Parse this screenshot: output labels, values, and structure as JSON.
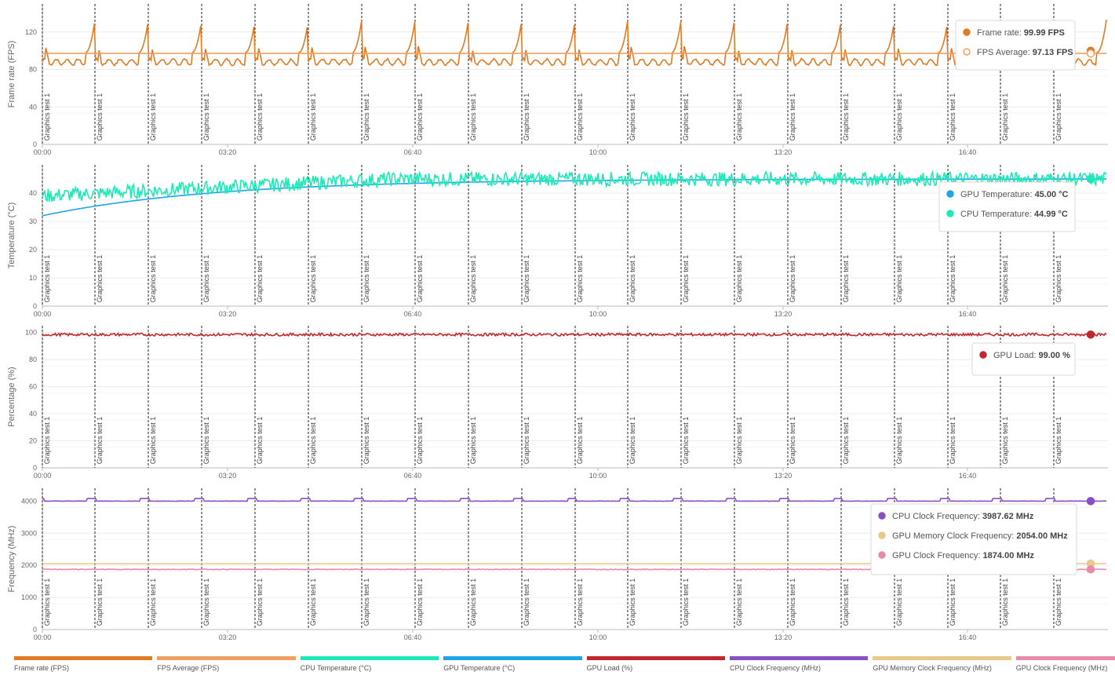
{
  "time_axis": {
    "tick_labels": [
      "00:00",
      "03:20",
      "06:40",
      "10:00",
      "13:20",
      "16:40"
    ]
  },
  "markers": {
    "label": "Graphics test 1",
    "count": 20
  },
  "legend": [
    {
      "label": "Frame rate (FPS)",
      "color": "#e07b22"
    },
    {
      "label": "FPS Average (FPS)",
      "color": "#f0a060"
    },
    {
      "label": "CPU Temperature (°C)",
      "color": "#1de9b6"
    },
    {
      "label": "GPU Temperature (°C)",
      "color": "#1ea5e8"
    },
    {
      "label": "GPU Load (%)",
      "color": "#c0282d"
    },
    {
      "label": "CPU Clock Frequency (MHz)",
      "color": "#8b4fc4"
    },
    {
      "label": "GPU Memory Clock Frequency (MHz)",
      "color": "#e8c98a"
    },
    {
      "label": "GPU Clock Frequency (MHz)",
      "color": "#e88aa8"
    }
  ],
  "tooltips": {
    "fps": [
      {
        "label": "Frame rate:",
        "value": "99.99 FPS",
        "color": "#e07b22",
        "hollow": false
      },
      {
        "label": "FPS Average:",
        "value": "97.13 FPS",
        "color": "#f0a060",
        "hollow": true
      }
    ],
    "temp": [
      {
        "label": "GPU Temperature:",
        "value": "45.00 °C",
        "color": "#1ea5e8",
        "hollow": false
      },
      {
        "label": "CPU Temperature:",
        "value": "44.99 °C",
        "color": "#1de9b6",
        "hollow": false
      }
    ],
    "load": [
      {
        "label": "GPU Load:",
        "value": "99.00 %",
        "color": "#c0282d",
        "hollow": false
      }
    ],
    "freq": [
      {
        "label": "CPU Clock Frequency:",
        "value": "3987.62 MHz",
        "color": "#8b4fc4",
        "hollow": false
      },
      {
        "label": "GPU Memory Clock Frequency:",
        "value": "2054.00 MHz",
        "color": "#e8c98a",
        "hollow": false
      },
      {
        "label": "GPU Clock Frequency:",
        "value": "1874.00 MHz",
        "color": "#e88aa8",
        "hollow": false
      }
    ]
  },
  "chart_data": [
    {
      "type": "line",
      "id": "fps",
      "ylabel": "Frame rate (FPS)",
      "ylim": [
        0,
        150
      ],
      "yticks": [
        0,
        40,
        80,
        120
      ],
      "xlim_seconds": [
        0,
        1195
      ],
      "grid": true,
      "series": [
        {
          "name": "Frame rate",
          "color": "#e07b22",
          "pattern": "sawtooth",
          "base": 88,
          "peak": 133,
          "segments": 20
        },
        {
          "name": "FPS Average",
          "color": "#f0a060",
          "constant": 97.13
        }
      ]
    },
    {
      "type": "line",
      "id": "temp",
      "ylabel": "Temperature (°C)",
      "ylim": [
        0,
        50
      ],
      "yticks": [
        0,
        10,
        20,
        30,
        40
      ],
      "xlim_seconds": [
        0,
        1195
      ],
      "grid": true,
      "series": [
        {
          "name": "GPU Temperature",
          "color": "#1ea5e8",
          "start": 32,
          "end": 45
        },
        {
          "name": "CPU Temperature",
          "color": "#1de9b6",
          "start": 39,
          "end": 45,
          "noise": 2.5
        }
      ]
    },
    {
      "type": "line",
      "id": "load",
      "ylabel": "Percentage (%)",
      "ylim": [
        0,
        105
      ],
      "yticks": [
        0,
        20,
        40,
        60,
        80,
        100
      ],
      "xlim_seconds": [
        0,
        1195
      ],
      "grid": true,
      "series": [
        {
          "name": "GPU Load",
          "color": "#c0282d",
          "level": 98.5
        }
      ]
    },
    {
      "type": "line",
      "id": "freq",
      "ylabel": "Frequency (MHz)",
      "ylim": [
        0,
        4400
      ],
      "yticks": [
        0,
        1000,
        2000,
        3000,
        4000
      ],
      "xlim_seconds": [
        0,
        1195
      ],
      "grid": true,
      "series": [
        {
          "name": "CPU Clock Frequency",
          "color": "#8b4fc4",
          "level": 4000,
          "high": 4080
        },
        {
          "name": "GPU Memory Clock Frequency",
          "color": "#e8c98a",
          "constant": 2054
        },
        {
          "name": "GPU Clock Frequency",
          "color": "#e88aa8",
          "level": 1874
        }
      ]
    }
  ]
}
